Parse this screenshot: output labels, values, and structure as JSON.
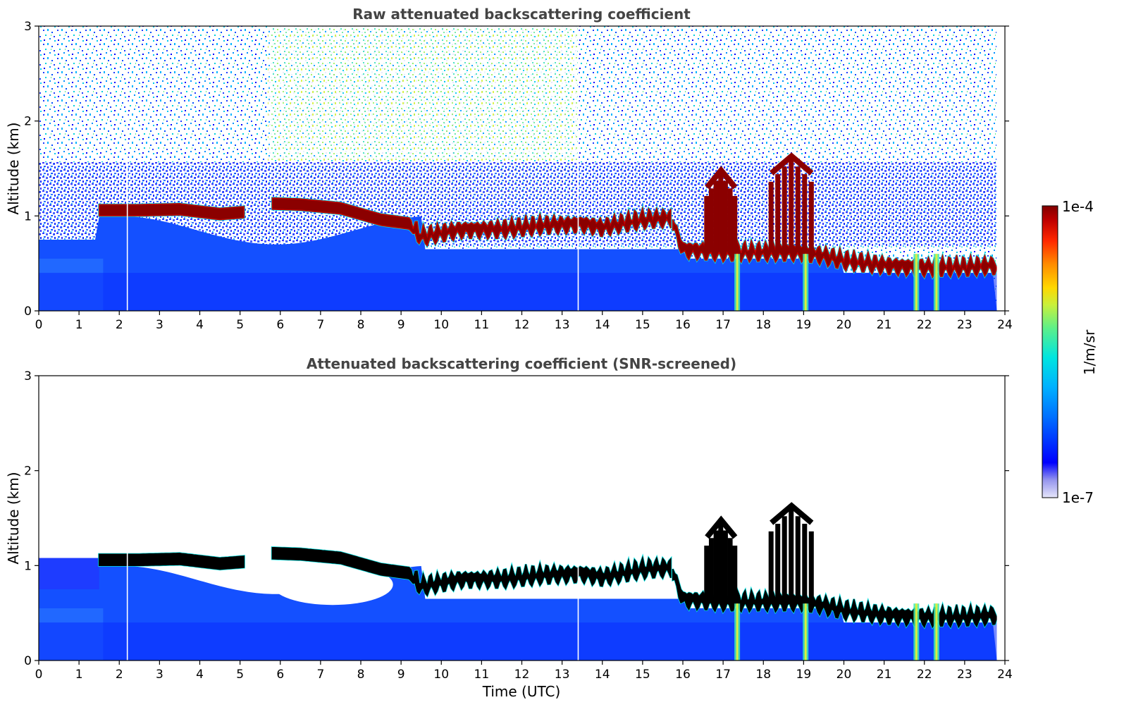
{
  "chart_data": [
    {
      "type": "heatmap",
      "title": "Raw attenuated backscattering coefficient",
      "xlabel": "",
      "ylabel": "Altitude (km)",
      "xlim": [
        0,
        24
      ],
      "ylim": [
        0,
        3
      ],
      "xticks": [
        "0",
        "1",
        "2",
        "3",
        "4",
        "5",
        "6",
        "7",
        "8",
        "9",
        "10",
        "11",
        "12",
        "13",
        "14",
        "15",
        "16",
        "17",
        "18",
        "19",
        "20",
        "21",
        "22",
        "23",
        "24"
      ],
      "yticks": [
        "0",
        "1",
        "2",
        "3"
      ],
      "screened": false,
      "cloud_base_km": [
        {
          "t": 1.5,
          "z": 1.06
        },
        {
          "t": 2.5,
          "z": 1.06
        },
        {
          "t": 3.5,
          "z": 1.07
        },
        {
          "t": 4.5,
          "z": 1.02
        },
        {
          "t": 5.1,
          "z": 1.04
        },
        {
          "t": 5.8,
          "z": 1.13
        },
        {
          "t": 6.5,
          "z": 1.12
        },
        {
          "t": 7.5,
          "z": 1.08
        },
        {
          "t": 8.5,
          "z": 0.96
        },
        {
          "t": 9.2,
          "z": 0.92
        },
        {
          "t": 9.5,
          "z": 0.78
        },
        {
          "t": 10.5,
          "z": 0.86
        },
        {
          "t": 11.5,
          "z": 0.86
        },
        {
          "t": 12.5,
          "z": 0.9
        },
        {
          "t": 13.5,
          "z": 0.92
        },
        {
          "t": 14.0,
          "z": 0.88
        },
        {
          "t": 14.5,
          "z": 0.92
        },
        {
          "t": 15.0,
          "z": 0.96
        },
        {
          "t": 15.7,
          "z": 0.98
        },
        {
          "t": 16.0,
          "z": 0.65
        },
        {
          "t": 17.0,
          "z": 0.62
        },
        {
          "t": 18.0,
          "z": 0.62
        },
        {
          "t": 19.0,
          "z": 0.62
        },
        {
          "t": 19.5,
          "z": 0.58
        },
        {
          "t": 20.0,
          "z": 0.53
        },
        {
          "t": 21.0,
          "z": 0.48
        },
        {
          "t": 22.0,
          "z": 0.46
        },
        {
          "t": 23.0,
          "z": 0.46
        },
        {
          "t": 23.8,
          "z": 0.48
        }
      ],
      "convective_cells": [
        {
          "t0": 16.6,
          "t1": 17.3,
          "top_km": 1.45
        },
        {
          "t0": 18.2,
          "t1": 19.2,
          "top_km": 1.6
        }
      ],
      "precipitation_shafts_utc": [
        17.35,
        19.05,
        21.8,
        22.3
      ]
    },
    {
      "type": "heatmap",
      "title": "Attenuated backscattering coefficient (SNR-screened)",
      "xlabel": "Time (UTC)",
      "ylabel": "Altitude (km)",
      "xlim": [
        0,
        24
      ],
      "ylim": [
        0,
        3
      ],
      "xticks": [
        "0",
        "1",
        "2",
        "3",
        "4",
        "5",
        "6",
        "7",
        "8",
        "9",
        "10",
        "11",
        "12",
        "13",
        "14",
        "15",
        "16",
        "17",
        "18",
        "19",
        "20",
        "21",
        "22",
        "23",
        "24"
      ],
      "yticks": [
        "0",
        "1",
        "2",
        "3"
      ],
      "screened": true
    }
  ],
  "colorbar": {
    "label": "1/m/sr",
    "max_label": "1e-4",
    "min_label": "1e-7",
    "stops": [
      "#e6e6fa",
      "#9696ee",
      "#0000ff",
      "#0072ff",
      "#00b2ff",
      "#00e5e0",
      "#5cf08a",
      "#c8f03c",
      "#ffd700",
      "#ff8c00",
      "#ff2800",
      "#c00000",
      "#800000"
    ]
  }
}
